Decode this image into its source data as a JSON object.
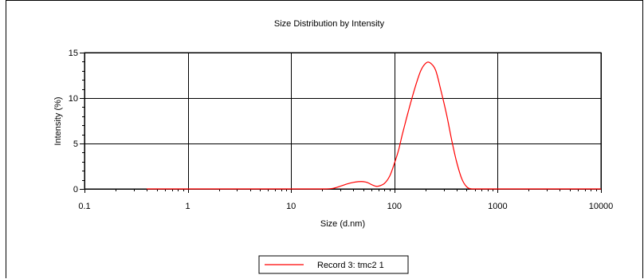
{
  "chart_data": {
    "type": "line",
    "title": "Size Distribution by Intensity",
    "xlabel": "Size (d.nm)",
    "ylabel": "Intensity (%)",
    "x_scale": "log",
    "xlim": [
      0.1,
      10000
    ],
    "ylim": [
      0,
      15
    ],
    "x_ticks": [
      {
        "value": 0.1,
        "label": "0.1"
      },
      {
        "value": 1,
        "label": "1"
      },
      {
        "value": 10,
        "label": "10"
      },
      {
        "value": 100,
        "label": "100"
      },
      {
        "value": 1000,
        "label": "1000"
      },
      {
        "value": 10000,
        "label": "10000"
      }
    ],
    "y_ticks": [
      {
        "value": 0,
        "label": "0"
      },
      {
        "value": 5,
        "label": "5"
      },
      {
        "value": 10,
        "label": "10"
      },
      {
        "value": 15,
        "label": "15"
      }
    ],
    "grid": true,
    "legend_position": "bottom-center",
    "colors": {
      "series": "#ff0000",
      "grid": "#000000"
    },
    "series": [
      {
        "name": "Record 3: tmc2 1",
        "x": [
          0.4,
          1,
          10,
          20,
          25,
          30,
          35,
          40,
          45,
          50,
          55,
          60,
          65,
          70,
          80,
          90,
          100,
          110,
          120,
          140,
          160,
          180,
          200,
          220,
          250,
          280,
          320,
          360,
          400,
          450,
          500,
          560,
          700,
          1000,
          10000
        ],
        "y": [
          0,
          0,
          0,
          0,
          0.05,
          0.3,
          0.55,
          0.72,
          0.8,
          0.8,
          0.7,
          0.48,
          0.32,
          0.3,
          0.6,
          1.4,
          2.8,
          4.3,
          6.1,
          9.0,
          11.3,
          13.0,
          13.8,
          13.9,
          13.1,
          11.0,
          8.2,
          5.3,
          3.0,
          1.1,
          0.25,
          0,
          0,
          0,
          0
        ]
      }
    ]
  }
}
